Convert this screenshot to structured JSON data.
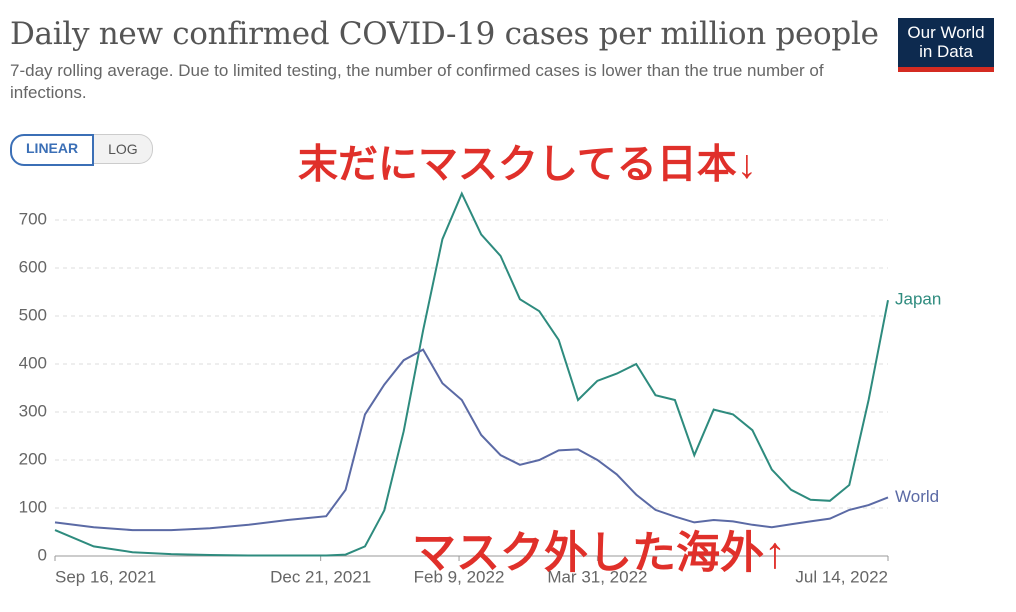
{
  "chart_data": {
    "type": "line",
    "title": "Daily new confirmed COVID-19 cases per million people",
    "subtitle": "7-day rolling average. Due to limited testing, the number of confirmed cases is lower than the true number of infections.",
    "logo": [
      "Our World",
      "in Data"
    ],
    "scale_buttons": [
      "LINEAR",
      "LOG"
    ],
    "log_scale": false,
    "grid": true,
    "annotations": [
      "末だにマスクしてる日本↓",
      "マスク外した海外↑"
    ],
    "x": [
      "2021-09-16",
      "2021-09-30",
      "2021-10-14",
      "2021-10-28",
      "2021-11-11",
      "2021-11-25",
      "2021-12-09",
      "2021-12-16",
      "2021-12-23",
      "2021-12-30",
      "2022-01-06",
      "2022-01-13",
      "2022-01-20",
      "2022-01-27",
      "2022-02-03",
      "2022-02-10",
      "2022-02-17",
      "2022-02-24",
      "2022-03-03",
      "2022-03-10",
      "2022-03-17",
      "2022-03-24",
      "2022-03-31",
      "2022-04-07",
      "2022-04-14",
      "2022-04-21",
      "2022-04-28",
      "2022-05-05",
      "2022-05-12",
      "2022-05-19",
      "2022-05-26",
      "2022-06-02",
      "2022-06-09",
      "2022-06-16",
      "2022-06-23",
      "2022-06-30",
      "2022-07-07",
      "2022-07-14"
    ],
    "xlim": [
      "2021-09-16",
      "2022-07-14"
    ],
    "xticks": [
      {
        "value": "2021-09-16",
        "label": "Sep 16, 2021"
      },
      {
        "value": "2021-12-21",
        "label": "Dec 21, 2021"
      },
      {
        "value": "2022-02-09",
        "label": "Feb 9, 2022"
      },
      {
        "value": "2022-03-31",
        "label": "Mar 31, 2022"
      },
      {
        "value": "2022-07-14",
        "label": "Jul 14, 2022"
      }
    ],
    "ylim": [
      0,
      700
    ],
    "yticks": [
      0,
      100,
      200,
      300,
      400,
      500,
      600,
      700
    ],
    "series": [
      {
        "name": "Japan",
        "color": "#2e8b7e",
        "values": [
          54,
          20,
          8,
          4,
          2,
          1,
          1,
          1,
          1,
          3,
          20,
          95,
          260,
          470,
          660,
          755,
          670,
          625,
          535,
          510,
          450,
          325,
          365,
          380,
          400,
          335,
          325,
          210,
          305,
          295,
          262,
          180,
          138,
          117,
          115,
          148,
          325,
          533
        ]
      },
      {
        "name": "World",
        "color": "#5b6aa5",
        "values": [
          70,
          60,
          54,
          54,
          58,
          65,
          75,
          79,
          83,
          138,
          295,
          357,
          408,
          430,
          360,
          325,
          252,
          210,
          190,
          200,
          220,
          222,
          200,
          170,
          128,
          96,
          82,
          70,
          75,
          72,
          65,
          60,
          66,
          72,
          78,
          96,
          106,
          122
        ]
      }
    ]
  }
}
